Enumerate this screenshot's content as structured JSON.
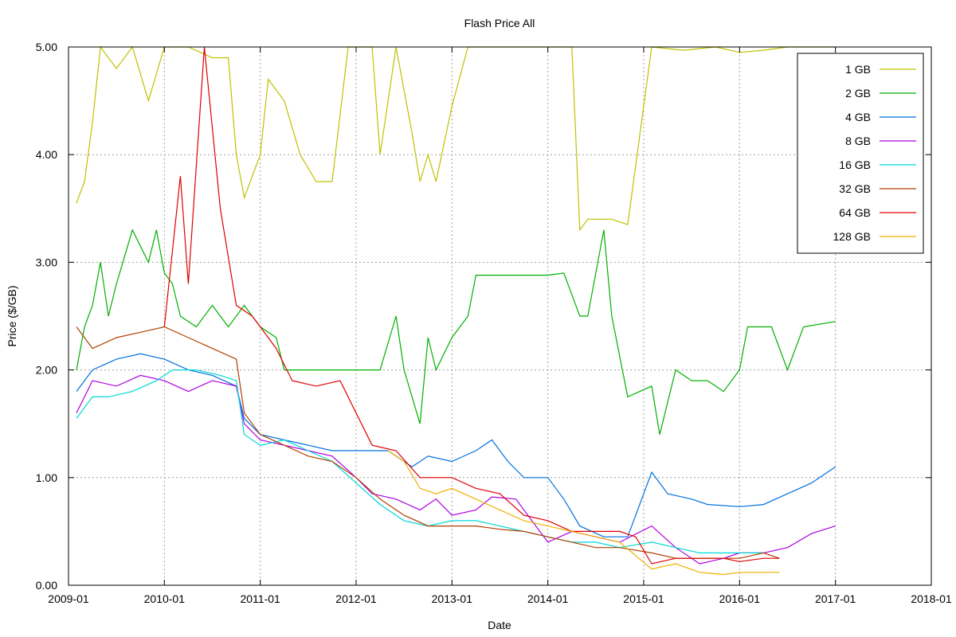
{
  "chart_data": {
    "type": "line",
    "title": "Flash Price All",
    "xlabel": "Date",
    "ylabel": "Price ($/GB)",
    "xlim": [
      "2009-01",
      "2018-01"
    ],
    "ylim": [
      0,
      5
    ],
    "xticks": [
      "2009-01",
      "2010-01",
      "2011-01",
      "2012-01",
      "2013-01",
      "2014-01",
      "2015-01",
      "2016-01",
      "2017-01",
      "2018-01"
    ],
    "yticks": [
      "0.00",
      "1.00",
      "2.00",
      "3.00",
      "4.00",
      "5.00"
    ],
    "grid": true,
    "legend_position": "top-right",
    "series": [
      {
        "name": "1 GB",
        "color": "#c0c000",
        "points": [
          [
            "2009-02",
            3.55
          ],
          [
            "2009-03",
            3.75
          ],
          [
            "2009-04",
            4.3
          ],
          [
            "2009-05",
            5.0
          ],
          [
            "2009-07",
            4.8
          ],
          [
            "2009-09",
            5.0
          ],
          [
            "2009-11",
            4.5
          ],
          [
            "2010-01",
            5.0
          ],
          [
            "2010-04",
            5.0
          ],
          [
            "2010-07",
            4.9
          ],
          [
            "2010-09",
            4.9
          ],
          [
            "2010-10",
            4.0
          ],
          [
            "2010-11",
            3.6
          ],
          [
            "2011-01",
            4.0
          ],
          [
            "2011-02",
            4.7
          ],
          [
            "2011-04",
            4.5
          ],
          [
            "2011-06",
            4.0
          ],
          [
            "2011-08",
            3.75
          ],
          [
            "2011-10",
            3.75
          ],
          [
            "2011-12",
            5.0
          ],
          [
            "2012-03",
            5.0
          ],
          [
            "2012-04",
            4.0
          ],
          [
            "2012-06",
            5.0
          ],
          [
            "2012-08",
            4.2
          ],
          [
            "2012-09",
            3.75
          ],
          [
            "2012-10",
            4.0
          ],
          [
            "2012-11",
            3.75
          ],
          [
            "2013-01",
            4.45
          ],
          [
            "2013-03",
            5.0
          ],
          [
            "2014-04",
            5.0
          ],
          [
            "2014-05",
            3.3
          ],
          [
            "2014-06",
            3.4
          ],
          [
            "2014-09",
            3.4
          ],
          [
            "2014-11",
            3.35
          ],
          [
            "2015-02",
            5.0
          ],
          [
            "2015-06",
            4.97
          ],
          [
            "2015-10",
            5.0
          ],
          [
            "2016-01",
            4.95
          ],
          [
            "2016-04",
            4.97
          ],
          [
            "2016-07",
            5.0
          ],
          [
            "2017-01",
            5.0
          ]
        ]
      },
      {
        "name": "2 GB",
        "color": "#00b000",
        "points": [
          [
            "2009-02",
            2.0
          ],
          [
            "2009-03",
            2.4
          ],
          [
            "2009-04",
            2.6
          ],
          [
            "2009-05",
            3.0
          ],
          [
            "2009-06",
            2.5
          ],
          [
            "2009-07",
            2.8
          ],
          [
            "2009-09",
            3.3
          ],
          [
            "2009-11",
            3.0
          ],
          [
            "2009-12",
            3.3
          ],
          [
            "2010-01",
            2.9
          ],
          [
            "2010-02",
            2.8
          ],
          [
            "2010-03",
            2.5
          ],
          [
            "2010-05",
            2.4
          ],
          [
            "2010-07",
            2.6
          ],
          [
            "2010-09",
            2.4
          ],
          [
            "2010-11",
            2.6
          ],
          [
            "2011-01",
            2.4
          ],
          [
            "2011-03",
            2.3
          ],
          [
            "2011-04",
            2.0
          ],
          [
            "2011-06",
            2.0
          ],
          [
            "2011-09",
            2.0
          ],
          [
            "2012-01",
            2.0
          ],
          [
            "2012-04",
            2.0
          ],
          [
            "2012-06",
            2.5
          ],
          [
            "2012-07",
            2.0
          ],
          [
            "2012-09",
            1.5
          ],
          [
            "2012-10",
            2.3
          ],
          [
            "2012-11",
            2.0
          ],
          [
            "2013-01",
            2.3
          ],
          [
            "2013-03",
            2.5
          ],
          [
            "2013-04",
            2.88
          ],
          [
            "2013-08",
            2.88
          ],
          [
            "2014-01",
            2.88
          ],
          [
            "2014-03",
            2.9
          ],
          [
            "2014-05",
            2.5
          ],
          [
            "2014-06",
            2.5
          ],
          [
            "2014-08",
            3.3
          ],
          [
            "2014-09",
            2.5
          ],
          [
            "2014-11",
            1.75
          ],
          [
            "2015-02",
            1.85
          ],
          [
            "2015-03",
            1.4
          ],
          [
            "2015-05",
            2.0
          ],
          [
            "2015-07",
            1.9
          ],
          [
            "2015-09",
            1.9
          ],
          [
            "2015-11",
            1.8
          ],
          [
            "2016-01",
            2.0
          ],
          [
            "2016-02",
            2.4
          ],
          [
            "2016-05",
            2.4
          ],
          [
            "2016-07",
            2.0
          ],
          [
            "2016-09",
            2.4
          ],
          [
            "2017-01",
            2.45
          ]
        ]
      },
      {
        "name": "4 GB",
        "color": "#0070e0",
        "points": [
          [
            "2009-02",
            1.8
          ],
          [
            "2009-04",
            2.0
          ],
          [
            "2009-07",
            2.1
          ],
          [
            "2009-10",
            2.15
          ],
          [
            "2010-01",
            2.1
          ],
          [
            "2010-04",
            2.0
          ],
          [
            "2010-07",
            1.95
          ],
          [
            "2010-10",
            1.85
          ],
          [
            "2010-11",
            1.55
          ],
          [
            "2011-01",
            1.4
          ],
          [
            "2011-04",
            1.35
          ],
          [
            "2011-07",
            1.3
          ],
          [
            "2011-10",
            1.25
          ],
          [
            "2012-01",
            1.25
          ],
          [
            "2012-05",
            1.25
          ],
          [
            "2012-08",
            1.1
          ],
          [
            "2012-10",
            1.2
          ],
          [
            "2013-01",
            1.15
          ],
          [
            "2013-04",
            1.25
          ],
          [
            "2013-06",
            1.35
          ],
          [
            "2013-08",
            1.15
          ],
          [
            "2013-10",
            1.0
          ],
          [
            "2014-01",
            1.0
          ],
          [
            "2014-03",
            0.8
          ],
          [
            "2014-05",
            0.55
          ],
          [
            "2014-08",
            0.45
          ],
          [
            "2014-11",
            0.45
          ],
          [
            "2015-02",
            1.05
          ],
          [
            "2015-04",
            0.85
          ],
          [
            "2015-07",
            0.8
          ],
          [
            "2015-09",
            0.75
          ],
          [
            "2016-01",
            0.73
          ],
          [
            "2016-04",
            0.75
          ],
          [
            "2016-07",
            0.85
          ],
          [
            "2016-10",
            0.95
          ],
          [
            "2017-01",
            1.1
          ]
        ]
      },
      {
        "name": "8 GB",
        "color": "#b000e0",
        "points": [
          [
            "2009-02",
            1.6
          ],
          [
            "2009-04",
            1.9
          ],
          [
            "2009-07",
            1.85
          ],
          [
            "2009-10",
            1.95
          ],
          [
            "2010-01",
            1.9
          ],
          [
            "2010-04",
            1.8
          ],
          [
            "2010-07",
            1.9
          ],
          [
            "2010-10",
            1.85
          ],
          [
            "2010-11",
            1.5
          ],
          [
            "2011-01",
            1.35
          ],
          [
            "2011-04",
            1.3
          ],
          [
            "2011-07",
            1.25
          ],
          [
            "2011-10",
            1.2
          ],
          [
            "2012-01",
            1.0
          ],
          [
            "2012-03",
            0.85
          ],
          [
            "2012-06",
            0.8
          ],
          [
            "2012-09",
            0.7
          ],
          [
            "2012-11",
            0.8
          ],
          [
            "2013-01",
            0.65
          ],
          [
            "2013-04",
            0.7
          ],
          [
            "2013-06",
            0.82
          ],
          [
            "2013-09",
            0.8
          ],
          [
            "2013-11",
            0.6
          ],
          [
            "2014-01",
            0.4
          ],
          [
            "2014-04",
            0.5
          ],
          [
            "2014-07",
            0.45
          ],
          [
            "2014-10",
            0.4
          ],
          [
            "2015-02",
            0.55
          ],
          [
            "2015-05",
            0.35
          ],
          [
            "2015-08",
            0.2
          ],
          [
            "2015-11",
            0.25
          ],
          [
            "2016-01",
            0.3
          ],
          [
            "2016-04",
            0.3
          ],
          [
            "2016-07",
            0.35
          ],
          [
            "2016-10",
            0.48
          ],
          [
            "2017-01",
            0.55
          ]
        ]
      },
      {
        "name": "16 GB",
        "color": "#00d8d8",
        "points": [
          [
            "2009-02",
            1.55
          ],
          [
            "2009-04",
            1.75
          ],
          [
            "2009-06",
            1.75
          ],
          [
            "2009-09",
            1.8
          ],
          [
            "2009-12",
            1.9
          ],
          [
            "2010-02",
            2.0
          ],
          [
            "2010-05",
            2.0
          ],
          [
            "2010-08",
            1.95
          ],
          [
            "2010-10",
            1.9
          ],
          [
            "2010-11",
            1.4
          ],
          [
            "2011-01",
            1.3
          ],
          [
            "2011-04",
            1.35
          ],
          [
            "2011-07",
            1.25
          ],
          [
            "2011-10",
            1.15
          ],
          [
            "2012-01",
            0.95
          ],
          [
            "2012-04",
            0.75
          ],
          [
            "2012-07",
            0.6
          ],
          [
            "2012-10",
            0.55
          ],
          [
            "2013-01",
            0.6
          ],
          [
            "2013-04",
            0.6
          ],
          [
            "2013-07",
            0.55
          ],
          [
            "2013-10",
            0.5
          ],
          [
            "2014-01",
            0.45
          ],
          [
            "2014-04",
            0.4
          ],
          [
            "2014-07",
            0.4
          ],
          [
            "2014-10",
            0.35
          ],
          [
            "2015-02",
            0.4
          ],
          [
            "2015-05",
            0.35
          ],
          [
            "2015-08",
            0.3
          ],
          [
            "2015-11",
            0.3
          ],
          [
            "2016-01",
            0.3
          ],
          [
            "2016-04",
            0.3
          ]
        ]
      },
      {
        "name": "32 GB",
        "color": "#b04000",
        "points": [
          [
            "2009-02",
            2.4
          ],
          [
            "2009-04",
            2.2
          ],
          [
            "2009-07",
            2.3
          ],
          [
            "2009-10",
            2.35
          ],
          [
            "2010-01",
            2.4
          ],
          [
            "2010-04",
            2.3
          ],
          [
            "2010-07",
            2.2
          ],
          [
            "2010-10",
            2.1
          ],
          [
            "2010-11",
            1.6
          ],
          [
            "2011-01",
            1.4
          ],
          [
            "2011-04",
            1.3
          ],
          [
            "2011-07",
            1.2
          ],
          [
            "2011-10",
            1.15
          ],
          [
            "2012-01",
            1.0
          ],
          [
            "2012-04",
            0.8
          ],
          [
            "2012-07",
            0.65
          ],
          [
            "2012-10",
            0.55
          ],
          [
            "2013-01",
            0.55
          ],
          [
            "2013-04",
            0.55
          ],
          [
            "2013-07",
            0.52
          ],
          [
            "2013-10",
            0.5
          ],
          [
            "2014-01",
            0.45
          ],
          [
            "2014-04",
            0.4
          ],
          [
            "2014-07",
            0.35
          ],
          [
            "2014-10",
            0.35
          ],
          [
            "2015-02",
            0.3
          ],
          [
            "2015-05",
            0.25
          ],
          [
            "2015-08",
            0.25
          ],
          [
            "2015-11",
            0.25
          ],
          [
            "2016-01",
            0.25
          ],
          [
            "2016-04",
            0.3
          ],
          [
            "2016-06",
            0.25
          ]
        ]
      },
      {
        "name": "64 GB",
        "color": "#e00000",
        "points": [
          [
            "2010-01",
            2.4
          ],
          [
            "2010-03",
            3.8
          ],
          [
            "2010-04",
            2.8
          ],
          [
            "2010-06",
            5.0
          ],
          [
            "2010-08",
            3.5
          ],
          [
            "2010-10",
            2.6
          ],
          [
            "2010-12",
            2.5
          ],
          [
            "2011-01",
            2.4
          ],
          [
            "2011-03",
            2.2
          ],
          [
            "2011-05",
            1.9
          ],
          [
            "2011-08",
            1.85
          ],
          [
            "2011-11",
            1.9
          ],
          [
            "2012-01",
            1.6
          ],
          [
            "2012-03",
            1.3
          ],
          [
            "2012-06",
            1.25
          ],
          [
            "2012-09",
            1.0
          ],
          [
            "2013-01",
            1.0
          ],
          [
            "2013-04",
            0.9
          ],
          [
            "2013-07",
            0.85
          ],
          [
            "2013-10",
            0.65
          ],
          [
            "2014-01",
            0.6
          ],
          [
            "2014-04",
            0.5
          ],
          [
            "2014-07",
            0.5
          ],
          [
            "2014-10",
            0.5
          ],
          [
            "2014-12",
            0.45
          ],
          [
            "2015-02",
            0.2
          ],
          [
            "2015-05",
            0.25
          ],
          [
            "2015-08",
            0.25
          ],
          [
            "2015-11",
            0.25
          ],
          [
            "2016-01",
            0.22
          ],
          [
            "2016-04",
            0.25
          ],
          [
            "2016-06",
            0.25
          ]
        ]
      },
      {
        "name": "128 GB",
        "color": "#f0b000",
        "points": [
          [
            "2012-05",
            1.25
          ],
          [
            "2012-07",
            1.15
          ],
          [
            "2012-09",
            0.9
          ],
          [
            "2012-11",
            0.85
          ],
          [
            "2013-01",
            0.9
          ],
          [
            "2013-04",
            0.8
          ],
          [
            "2013-07",
            0.7
          ],
          [
            "2013-10",
            0.6
          ],
          [
            "2014-01",
            0.55
          ],
          [
            "2014-04",
            0.5
          ],
          [
            "2014-07",
            0.45
          ],
          [
            "2014-10",
            0.4
          ],
          [
            "2015-02",
            0.15
          ],
          [
            "2015-05",
            0.2
          ],
          [
            "2015-08",
            0.12
          ],
          [
            "2015-11",
            0.1
          ],
          [
            "2016-01",
            0.12
          ],
          [
            "2016-04",
            0.12
          ],
          [
            "2016-06",
            0.12
          ]
        ]
      }
    ]
  }
}
